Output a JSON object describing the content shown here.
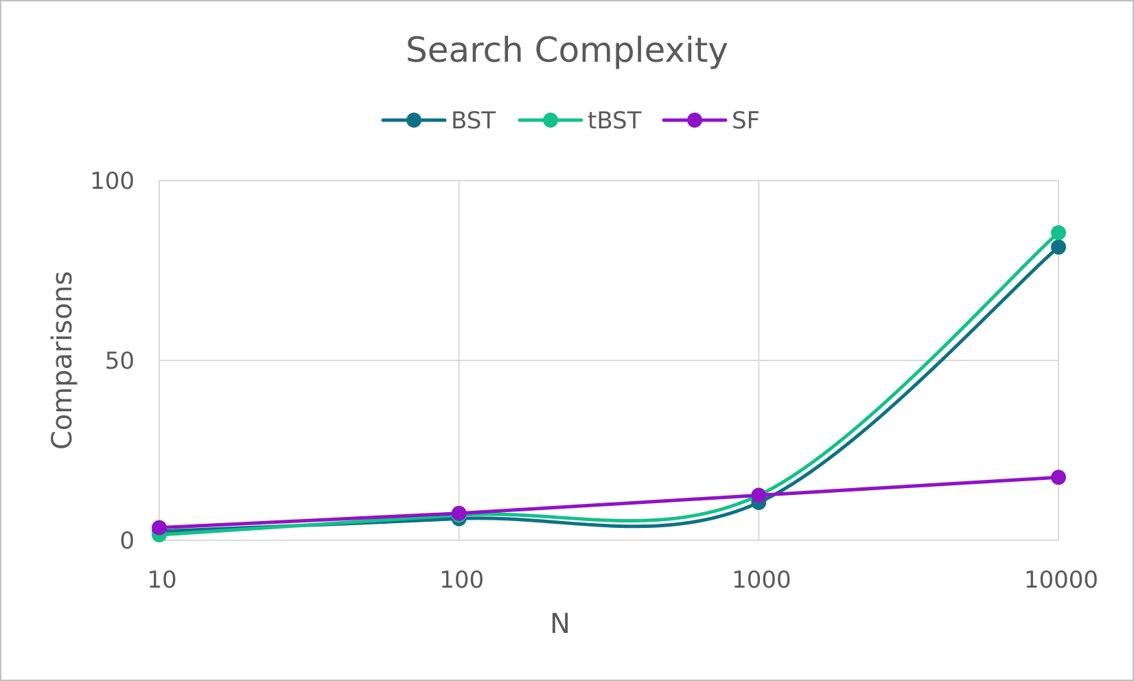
{
  "chart_data": {
    "type": "line",
    "title": "Search Complexity",
    "xlabel": "N",
    "ylabel": "Comparisons",
    "x_scale": "log",
    "x": [
      10,
      100,
      1000,
      10000
    ],
    "x_tick_labels": [
      "10",
      "100",
      "1000",
      "10000"
    ],
    "ylim": [
      0,
      100
    ],
    "y_ticks": [
      0,
      50,
      100
    ],
    "y_tick_labels": [
      "0",
      "50",
      "100"
    ],
    "grid": true,
    "legend_position": "top",
    "smoothed": true,
    "series": [
      {
        "name": "BST",
        "color": "#0e7185",
        "values": [
          2.5,
          6,
          10.5,
          81.5
        ]
      },
      {
        "name": "tBST",
        "color": "#16c08a",
        "values": [
          1.5,
          7,
          12.5,
          85.5
        ]
      },
      {
        "name": "SF",
        "color": "#9013c6",
        "values": [
          3.5,
          7.5,
          12.5,
          17.5
        ]
      }
    ]
  }
}
